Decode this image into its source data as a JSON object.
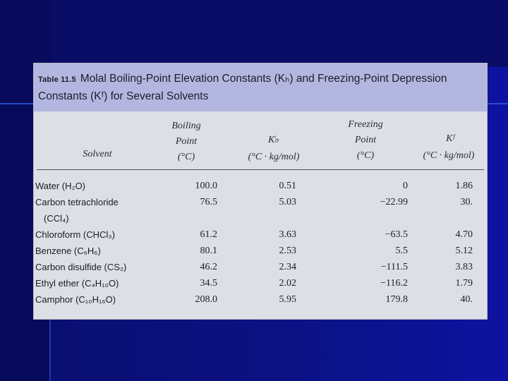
{
  "table": {
    "label": "Table 11.5",
    "title_line1": "Molal Boiling-Point Elevation Constants (Kₕ) and Freezing-Point Depression",
    "title_line2": "Constants (Kᶠ) for Several Solvents",
    "headers": {
      "solvent": "Solvent",
      "bp_line1": "Boiling",
      "bp_line2": "Point",
      "bp_line3": "(°C)",
      "kb_line1": "K♭",
      "kb_line2": "(°C · kg/mol)",
      "fp_line1": "Freezing",
      "fp_line2": "Point",
      "fp_line3": "(°C)",
      "kf_line1": "Kᶠ",
      "kf_line2": "(°C · kg/mol)"
    },
    "rows": [
      {
        "solvent": "Water (H₂O)",
        "bp": "100.0",
        "kb": "0.51",
        "fp": "0",
        "kf": "1.86"
      },
      {
        "solvent": "Carbon tetrachloride",
        "bp": "76.5",
        "kb": "5.03",
        "fp": "−22.99",
        "kf": "30."
      },
      {
        "solvent": "(CCl₄)",
        "bp": "",
        "kb": "",
        "fp": "",
        "kf": ""
      },
      {
        "solvent": "Chloroform (CHCl₃)",
        "bp": "61.2",
        "kb": "3.63",
        "fp": "−63.5",
        "kf": "4.70"
      },
      {
        "solvent": "Benzene (C₆H₆)",
        "bp": "80.1",
        "kb": "2.53",
        "fp": "5.5",
        "kf": "5.12"
      },
      {
        "solvent": "Carbon disulfide (CS₂)",
        "bp": "46.2",
        "kb": "2.34",
        "fp": "−111.5",
        "kf": "3.83"
      },
      {
        "solvent": "Ethyl ether (C₄H₁₀O)",
        "bp": "34.5",
        "kb": "2.02",
        "fp": "−116.2",
        "kf": "1.79"
      },
      {
        "solvent": "Camphor (C₁₀H₁₆O)",
        "bp": "208.0",
        "kb": "5.95",
        "fp": "179.8",
        "kf": "40."
      }
    ]
  },
  "colors": {
    "slide_background": "#0b1182",
    "caption_band": "#b3b7e0",
    "table_background": "#dcdfe6"
  }
}
